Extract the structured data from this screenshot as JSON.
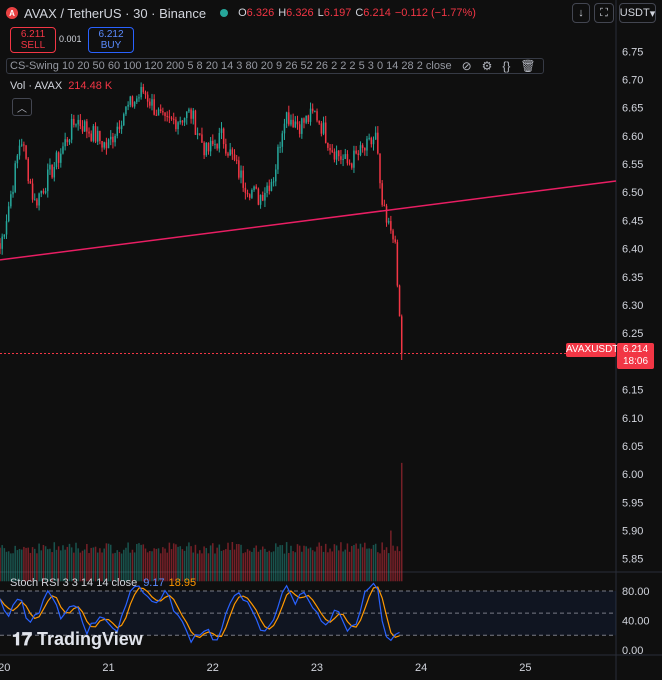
{
  "header": {
    "symbol_badge": "A",
    "title": "AVAX / TetherUS · 30 · Binance",
    "ohlc": {
      "o_label": "O",
      "o": "6.326",
      "h_label": "H",
      "h": "6.326",
      "l_label": "L",
      "l": "6.197",
      "c_label": "C",
      "c": "6.214",
      "change": "−0.112 (−1.77%)"
    },
    "currency_button": "USDT",
    "download_icon": "download-icon",
    "fullscreen_icon": "fullscreen-icon"
  },
  "trade": {
    "sell_price": "6.211",
    "sell_label": "SELL",
    "spread": "0.001",
    "buy_price": "6.212",
    "buy_label": "BUY"
  },
  "indicator_bar": {
    "text": "CS-Swing 10 20 50 60 100 120 200 5 8 20 14 3 80 20 9 26 52 26 2 2 2 5 3 0 14 28 2 close",
    "icons": [
      "eye-off-icon",
      "settings-icon",
      "braces-icon",
      "trash-icon",
      "more-icon"
    ]
  },
  "volume_legend": {
    "label": "Vol · AVAX",
    "value": "214.48 K"
  },
  "stoch_legend": {
    "label": "Stoch RSI 3 3 14 14 close",
    "k": "9.17",
    "d": "18.95"
  },
  "brand": {
    "name": "TradingView"
  },
  "price_label": {
    "symbol": "AVAXUSDT",
    "price": "6.214",
    "countdown": "18:06"
  },
  "colors": {
    "up": "#26a69a",
    "down": "#f23645",
    "trendline": "#e91e63",
    "k_line": "#2962ff",
    "d_line": "#ff9800",
    "background": "#0f0f0f"
  },
  "chart_data": {
    "type": "candlestick",
    "price_axis": {
      "ticks": [
        6.75,
        6.7,
        6.65,
        6.6,
        6.55,
        6.5,
        6.45,
        6.4,
        6.35,
        6.3,
        6.25,
        6.2,
        6.15,
        6.1,
        6.05,
        6.0,
        5.95,
        5.9,
        5.85
      ],
      "range": [
        5.83,
        6.77
      ]
    },
    "time_axis": {
      "labels": [
        "20",
        "21",
        "22",
        "23",
        "24",
        "25"
      ],
      "start_day": 19.97,
      "end_day": 25.88
    },
    "last_price": 6.214,
    "trendline": {
      "start": {
        "day": 19.97,
        "price": 6.38
      },
      "end": {
        "day": 25.88,
        "price": 6.52
      }
    },
    "stoch_axis": {
      "ticks": [
        80,
        40,
        0
      ],
      "band": [
        20,
        80
      ],
      "mid": 50
    },
    "price_anchors": [
      [
        19.97,
        6.4
      ],
      [
        20.1,
        6.52
      ],
      [
        20.17,
        6.6
      ],
      [
        20.3,
        6.48
      ],
      [
        20.5,
        6.55
      ],
      [
        20.7,
        6.63
      ],
      [
        21.0,
        6.58
      ],
      [
        21.15,
        6.64
      ],
      [
        21.35,
        6.68
      ],
      [
        21.55,
        6.62
      ],
      [
        21.8,
        6.64
      ],
      [
        21.95,
        6.57
      ],
      [
        22.1,
        6.6
      ],
      [
        22.3,
        6.52
      ],
      [
        22.45,
        6.49
      ],
      [
        22.6,
        6.53
      ],
      [
        22.7,
        6.64
      ],
      [
        22.85,
        6.62
      ],
      [
        23.0,
        6.64
      ],
      [
        23.15,
        6.58
      ],
      [
        23.3,
        6.55
      ],
      [
        23.5,
        6.58
      ],
      [
        23.58,
        6.6
      ],
      [
        23.62,
        6.49
      ],
      [
        23.68,
        6.44
      ],
      [
        23.75,
        6.43
      ],
      [
        23.8,
        6.28
      ],
      [
        23.84,
        6.214
      ]
    ],
    "volume": {
      "base": 5.85,
      "typical_top": 5.88,
      "spikes": [
        {
          "day": 23.72,
          "top": 5.9
        },
        {
          "day": 23.82,
          "top": 6.02
        },
        {
          "day": 23.84,
          "top": 6.08
        }
      ]
    },
    "stoch_anchors": [
      [
        19.97,
        70
      ],
      [
        20.05,
        45
      ],
      [
        20.15,
        75
      ],
      [
        20.25,
        30
      ],
      [
        20.35,
        55
      ],
      [
        20.45,
        85
      ],
      [
        20.55,
        40
      ],
      [
        20.7,
        65
      ],
      [
        20.8,
        25
      ],
      [
        20.95,
        50
      ],
      [
        21.1,
        20
      ],
      [
        21.2,
        78
      ],
      [
        21.3,
        90
      ],
      [
        21.45,
        60
      ],
      [
        21.55,
        80
      ],
      [
        21.7,
        40
      ],
      [
        21.8,
        15
      ],
      [
        21.95,
        30
      ],
      [
        22.05,
        10
      ],
      [
        22.15,
        50
      ],
      [
        22.25,
        85
      ],
      [
        22.35,
        60
      ],
      [
        22.5,
        20
      ],
      [
        22.6,
        45
      ],
      [
        22.7,
        88
      ],
      [
        22.8,
        65
      ],
      [
        22.9,
        82
      ],
      [
        23.0,
        50
      ],
      [
        23.1,
        30
      ],
      [
        23.2,
        55
      ],
      [
        23.3,
        22
      ],
      [
        23.4,
        40
      ],
      [
        23.5,
        88
      ],
      [
        23.58,
        92
      ],
      [
        23.65,
        25
      ],
      [
        23.72,
        18
      ],
      [
        23.8,
        22
      ],
      [
        23.84,
        12
      ]
    ]
  }
}
